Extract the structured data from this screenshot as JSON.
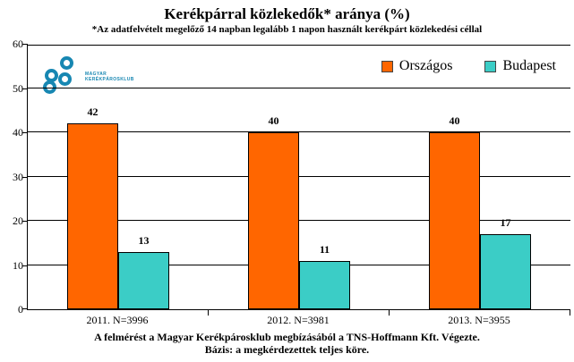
{
  "title": "Kerékpárral közlekedők* aránya (%)",
  "subtitle": "*Az adatfelvételt megelőző 14 napban legalább 1 napon használt kerékpárt közlekedési céllal",
  "logo": {
    "line1": "MAGYAR",
    "line2": "KERÉKPÁROSKLUB",
    "color": "#1787b2"
  },
  "chart_data": {
    "type": "bar",
    "categories": [
      "2011. N=3996",
      "2012. N=3981",
      "2013. N=3955"
    ],
    "series": [
      {
        "name": "Országos",
        "color": "#ff6600",
        "values": [
          42,
          40,
          40
        ]
      },
      {
        "name": "Budapest",
        "color": "#3bcdc6",
        "values": [
          13,
          11,
          17
        ]
      }
    ],
    "title": "Kerékpárral közlekedők* aránya (%)",
    "xlabel": "",
    "ylabel": "",
    "ylim": [
      0,
      60
    ],
    "ytick_step": 10,
    "grid": true,
    "legend_position": "top-right",
    "bar_border_color": "#000000"
  },
  "footer_line1": "A felmérést a Magyar Kerékpárosklub megbízásából a TNS-Hoffmann Kft. Végezte.",
  "footer_line2": "Bázis: a megkérdezettek teljes köre."
}
